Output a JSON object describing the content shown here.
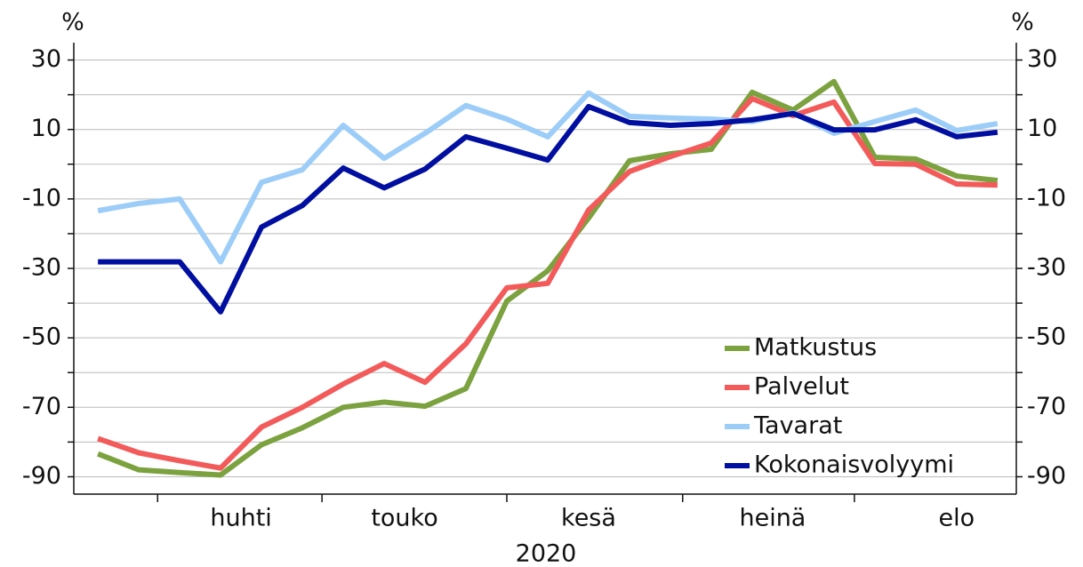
{
  "chart_data": {
    "type": "line",
    "ylabel": "%",
    "y2label": "%",
    "xlabel": "2020",
    "categories": [
      null,
      null,
      null,
      null,
      null,
      null,
      null,
      null,
      null,
      null,
      null,
      null,
      null,
      null,
      null,
      null,
      null,
      null,
      null,
      null,
      null,
      null,
      null
    ],
    "xlim": [
      -0.59,
      22.46
    ],
    "xticks": [
      {
        "value": 3.5,
        "label": "huhti"
      },
      {
        "value": 7.5,
        "label": "touko"
      },
      {
        "value": 12,
        "label": "kesä"
      },
      {
        "value": 16.5,
        "label": "heinä"
      },
      {
        "value": 21,
        "label": "elo"
      }
    ],
    "x_boundaries": [
      1.46,
      5.48,
      10,
      14.3,
      18.5
    ],
    "ylim": [
      -95,
      35
    ],
    "yticks": [
      30,
      10,
      -10,
      -30,
      -50,
      -70,
      -90
    ],
    "minor_yticks": [
      20,
      0,
      -20,
      -40,
      -60,
      -80
    ],
    "y2lim": [
      -95,
      35
    ],
    "y2ticks": [
      30,
      10,
      -10,
      -30,
      -50,
      -70,
      -90
    ],
    "grid": true,
    "legend": "lower right",
    "series": [
      {
        "name": "Matkustus",
        "color": "#7ba23f",
        "values": [
          -83.4,
          -88,
          -88.8,
          -89.5,
          -80.8,
          -75.9,
          -70,
          -68.5,
          -69.7,
          -64.6,
          -39.4,
          -30.7,
          -15.5,
          1,
          3,
          4.3,
          20.7,
          15.6,
          23.8,
          2,
          1.5,
          -3.4,
          -4.7
        ]
      },
      {
        "name": "Palvelut",
        "color": "#f35a5a",
        "values": [
          -79,
          -83.1,
          -85.4,
          -87.5,
          -75.7,
          -70,
          -63.3,
          -57.4,
          -62.8,
          -51.7,
          -35.6,
          -34.3,
          -13.2,
          -2.1,
          2.2,
          6.1,
          18.9,
          14,
          17.9,
          0.2,
          0,
          -5.7,
          -6
        ]
      },
      {
        "name": "Tavarat",
        "color": "#9ccdf8",
        "values": [
          -13.4,
          -11.3,
          -10,
          -28.1,
          -5.2,
          -1.6,
          11.2,
          1.7,
          8.9,
          16.9,
          13,
          7.9,
          20.5,
          13.8,
          13.3,
          13,
          12.3,
          14.8,
          8.9,
          12.3,
          15.6,
          9.7,
          11.7
        ]
      },
      {
        "name": "Kokonaisvolyymi",
        "color": "#000f9f",
        "values": [
          -28.1,
          -28.1,
          -28.1,
          -42.5,
          -18.1,
          -11.9,
          -1.1,
          -6.8,
          -1.4,
          7.9,
          4.6,
          1.2,
          16.6,
          12,
          11.2,
          11.7,
          12.8,
          14.6,
          9.9,
          9.9,
          12.8,
          7.9,
          9.2
        ]
      }
    ]
  }
}
